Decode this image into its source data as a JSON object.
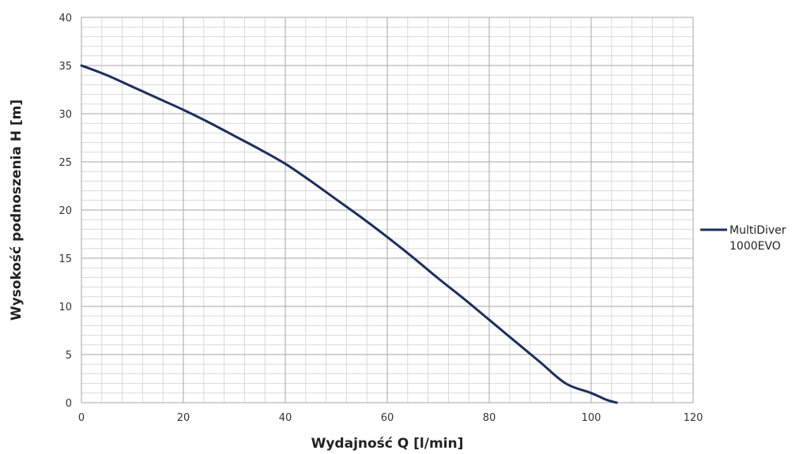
{
  "chart_data": {
    "type": "line",
    "title": "",
    "xlabel": "Wydajność Q [l/min]",
    "ylabel": "Wysokość podnoszenia H [m]",
    "xlim": [
      0,
      120
    ],
    "ylim": [
      0,
      40
    ],
    "x_ticks": [
      "0",
      "20",
      "40",
      "60",
      "80",
      "100",
      "120"
    ],
    "y_ticks": [
      "0",
      "5",
      "10",
      "15",
      "20",
      "25",
      "30",
      "35",
      "40"
    ],
    "grid": true,
    "legend_position": "right",
    "series": [
      {
        "name": "MultiDiver 1000EVO",
        "legend_lines": [
          "MultiDiver",
          "1000EVO"
        ],
        "color": "#1b2f5e",
        "x": [
          0,
          5,
          10,
          15,
          20,
          25,
          30,
          35,
          40,
          45,
          50,
          55,
          60,
          65,
          70,
          75,
          80,
          85,
          90,
          95,
          100,
          103,
          105
        ],
        "y": [
          35,
          34.0,
          32.8,
          31.6,
          30.4,
          29.1,
          27.7,
          26.3,
          24.8,
          23.0,
          21.1,
          19.2,
          17.2,
          15.1,
          12.9,
          10.8,
          8.6,
          6.4,
          4.2,
          2.0,
          1.0,
          0.3,
          0
        ]
      }
    ]
  }
}
